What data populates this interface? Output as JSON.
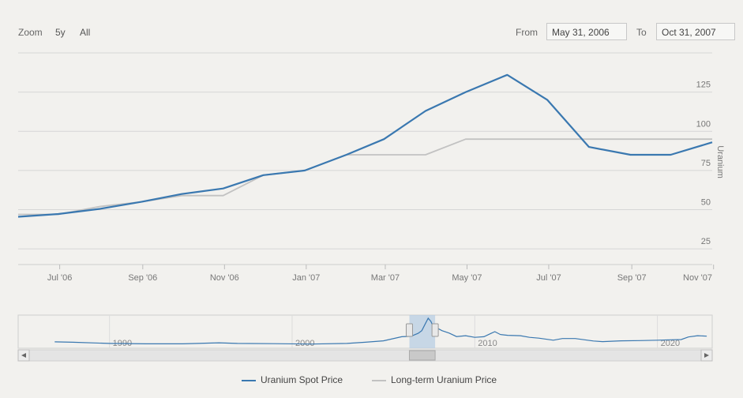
{
  "toolbar": {
    "zoom_label": "Zoom",
    "zoom_options": [
      "5y",
      "All"
    ],
    "from_label": "From",
    "from_value": "May 31, 2006",
    "to_label": "To",
    "to_value": "Oct 31, 2007"
  },
  "colors": {
    "spot": "#3a78b0",
    "longterm": "#c2c2c2",
    "grid": "#d6d6d6",
    "navigator_mask": "#b8cde3"
  },
  "chart_data": {
    "type": "line",
    "ylabel": "Uranium",
    "ylim": [
      15,
      150
    ],
    "yticks": [
      25,
      50,
      75,
      100,
      125
    ],
    "xlim": [
      "2006-05-31",
      "2007-10-31"
    ],
    "xticks": [
      {
        "date": "2006-07-01",
        "label": "Jul '06"
      },
      {
        "date": "2006-09-01",
        "label": "Sep '06"
      },
      {
        "date": "2006-11-01",
        "label": "Nov '06"
      },
      {
        "date": "2007-01-01",
        "label": "Jan '07"
      },
      {
        "date": "2007-03-01",
        "label": "Mar '07"
      },
      {
        "date": "2007-05-01",
        "label": "May '07"
      },
      {
        "date": "2007-07-01",
        "label": "Jul '07"
      },
      {
        "date": "2007-09-01",
        "label": "Sep '07"
      },
      {
        "date": "2007-11-01",
        "label": "Nov '07"
      }
    ],
    "series": [
      {
        "name": "Uranium Spot Price",
        "points": [
          [
            "2006-05-31",
            45.5
          ],
          [
            "2006-06-30",
            47.25
          ],
          [
            "2006-07-31",
            50.5
          ],
          [
            "2006-08-31",
            55
          ],
          [
            "2006-09-30",
            60
          ],
          [
            "2006-10-31",
            63.5
          ],
          [
            "2006-11-30",
            72
          ],
          [
            "2006-12-31",
            75
          ],
          [
            "2007-01-31",
            85
          ],
          [
            "2007-02-28",
            95
          ],
          [
            "2007-03-31",
            113
          ],
          [
            "2007-04-30",
            125
          ],
          [
            "2007-05-31",
            136
          ],
          [
            "2007-06-30",
            120
          ],
          [
            "2007-07-31",
            90
          ],
          [
            "2007-08-31",
            85
          ],
          [
            "2007-09-30",
            85
          ],
          [
            "2007-10-31",
            93
          ]
        ]
      },
      {
        "name": "Long-term Uranium Price",
        "points": [
          [
            "2006-05-31",
            47
          ],
          [
            "2006-06-30",
            47
          ],
          [
            "2006-07-31",
            52
          ],
          [
            "2006-08-31",
            55
          ],
          [
            "2006-09-30",
            59
          ],
          [
            "2006-10-31",
            59
          ],
          [
            "2006-11-30",
            72
          ],
          [
            "2006-12-31",
            75
          ],
          [
            "2007-01-31",
            85
          ],
          [
            "2007-02-28",
            85
          ],
          [
            "2007-03-31",
            85
          ],
          [
            "2007-04-30",
            95
          ],
          [
            "2007-05-31",
            95
          ],
          [
            "2007-06-30",
            95
          ],
          [
            "2007-07-31",
            95
          ],
          [
            "2007-08-31",
            95
          ],
          [
            "2007-09-30",
            95
          ],
          [
            "2007-10-31",
            95
          ]
        ]
      }
    ],
    "navigator": {
      "xlim": [
        1985,
        2023
      ],
      "labels": [
        1990,
        2000,
        2010,
        2020
      ],
      "selection": [
        2006.42,
        2007.83
      ],
      "ylim": [
        0,
        140
      ],
      "points": [
        [
          1987,
          20
        ],
        [
          1988,
          18
        ],
        [
          1990,
          12
        ],
        [
          1992,
          10
        ],
        [
          1994,
          10
        ],
        [
          1996,
          15
        ],
        [
          1997,
          12
        ],
        [
          1999,
          11
        ],
        [
          2001,
          9
        ],
        [
          2003,
          12
        ],
        [
          2004,
          18
        ],
        [
          2005,
          25
        ],
        [
          2006,
          45
        ],
        [
          2006.5,
          47
        ],
        [
          2006.9,
          62
        ],
        [
          2007.1,
          75
        ],
        [
          2007.3,
          110
        ],
        [
          2007.45,
          136
        ],
        [
          2007.6,
          120
        ],
        [
          2007.75,
          90
        ],
        [
          2007.83,
          93
        ],
        [
          2008.2,
          75
        ],
        [
          2008.6,
          63
        ],
        [
          2009,
          46
        ],
        [
          2009.5,
          50
        ],
        [
          2010,
          42
        ],
        [
          2010.5,
          45
        ],
        [
          2010.9,
          62
        ],
        [
          2011.1,
          70
        ],
        [
          2011.4,
          56
        ],
        [
          2011.8,
          52
        ],
        [
          2012.5,
          50
        ],
        [
          2013,
          42
        ],
        [
          2013.5,
          38
        ],
        [
          2014.3,
          28
        ],
        [
          2014.8,
          36
        ],
        [
          2015.5,
          36
        ],
        [
          2016.5,
          24
        ],
        [
          2017,
          21
        ],
        [
          2018,
          25
        ],
        [
          2019,
          26
        ],
        [
          2020,
          28
        ],
        [
          2020.7,
          30
        ],
        [
          2021.3,
          31
        ],
        [
          2021.7,
          44
        ],
        [
          2022.2,
          50
        ],
        [
          2022.7,
          48
        ]
      ]
    }
  }
}
